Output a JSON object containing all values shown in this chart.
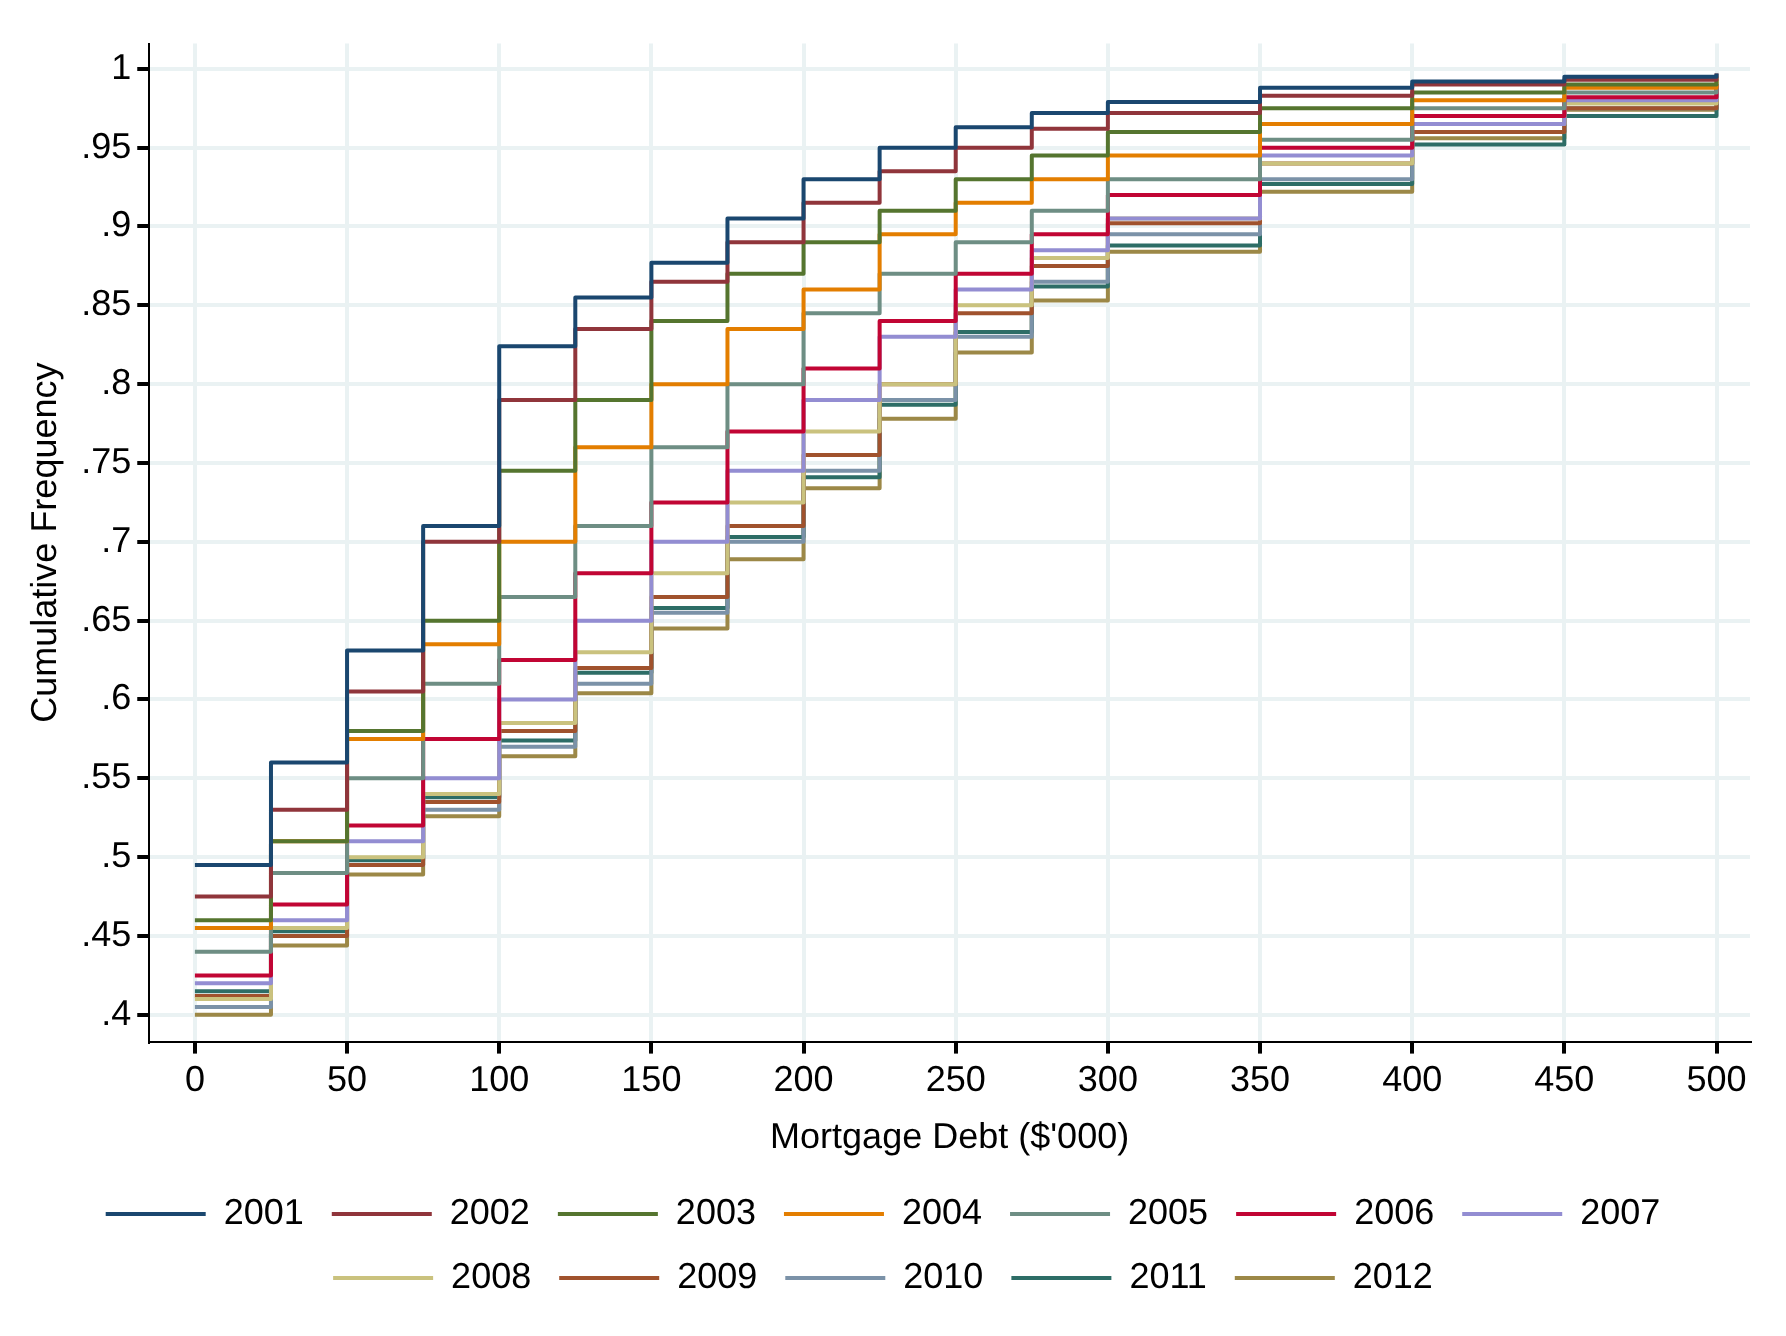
{
  "chart_data": {
    "type": "step",
    "xlabel": "Mortgage Debt ($'000)",
    "ylabel": "Cumulative Frequency",
    "x": [
      0,
      25,
      50,
      75,
      100,
      125,
      150,
      175,
      200,
      225,
      250,
      275,
      300,
      350,
      400,
      450,
      500
    ],
    "series": [
      {
        "name": "2001",
        "color": "#1a476f",
        "values": [
          0.495,
          0.56,
          0.631,
          0.71,
          0.824,
          0.855,
          0.877,
          0.905,
          0.93,
          0.95,
          0.963,
          0.972,
          0.979,
          0.988,
          0.992,
          0.995,
          0.997
        ]
      },
      {
        "name": "2002",
        "color": "#90353b",
        "values": [
          0.475,
          0.53,
          0.605,
          0.7,
          0.79,
          0.835,
          0.865,
          0.89,
          0.915,
          0.935,
          0.95,
          0.962,
          0.972,
          0.983,
          0.99,
          0.993,
          0.997
        ]
      },
      {
        "name": "2003",
        "color": "#55752f",
        "values": [
          0.46,
          0.51,
          0.58,
          0.65,
          0.745,
          0.79,
          0.84,
          0.87,
          0.89,
          0.91,
          0.93,
          0.945,
          0.96,
          0.975,
          0.985,
          0.99,
          0.995
        ]
      },
      {
        "name": "2004",
        "color": "#e37e00",
        "values": [
          0.455,
          0.51,
          0.575,
          0.635,
          0.7,
          0.76,
          0.8,
          0.835,
          0.86,
          0.895,
          0.915,
          0.93,
          0.945,
          0.965,
          0.98,
          0.988,
          0.993
        ]
      },
      {
        "name": "2005",
        "color": "#6e8e84",
        "values": [
          0.44,
          0.49,
          0.55,
          0.61,
          0.665,
          0.71,
          0.76,
          0.8,
          0.845,
          0.87,
          0.89,
          0.91,
          0.93,
          0.955,
          0.975,
          0.985,
          0.99
        ]
      },
      {
        "name": "2006",
        "color": "#c10534",
        "values": [
          0.425,
          0.47,
          0.52,
          0.575,
          0.625,
          0.68,
          0.725,
          0.77,
          0.81,
          0.84,
          0.87,
          0.895,
          0.92,
          0.95,
          0.97,
          0.982,
          0.99
        ]
      },
      {
        "name": "2007",
        "color": "#938dd2",
        "values": [
          0.42,
          0.46,
          0.51,
          0.55,
          0.6,
          0.65,
          0.7,
          0.745,
          0.79,
          0.83,
          0.86,
          0.885,
          0.905,
          0.945,
          0.965,
          0.98,
          0.99
        ]
      },
      {
        "name": "2008",
        "color": "#cac27e",
        "values": [
          0.41,
          0.455,
          0.5,
          0.54,
          0.585,
          0.63,
          0.68,
          0.725,
          0.77,
          0.8,
          0.85,
          0.88,
          0.905,
          0.94,
          0.965,
          0.978,
          0.988
        ]
      },
      {
        "name": "2009",
        "color": "#a0522d",
        "values": [
          0.412,
          0.45,
          0.495,
          0.535,
          0.58,
          0.62,
          0.665,
          0.71,
          0.755,
          0.8,
          0.845,
          0.875,
          0.902,
          0.94,
          0.96,
          0.975,
          0.99
        ]
      },
      {
        "name": "2010",
        "color": "#7b92a8",
        "values": [
          0.405,
          0.45,
          0.495,
          0.53,
          0.57,
          0.61,
          0.655,
          0.7,
          0.745,
          0.79,
          0.83,
          0.865,
          0.895,
          0.93,
          0.96,
          0.975,
          0.985
        ]
      },
      {
        "name": "2011",
        "color": "#2d6d66",
        "values": [
          0.415,
          0.453,
          0.498,
          0.538,
          0.574,
          0.617,
          0.658,
          0.703,
          0.741,
          0.787,
          0.833,
          0.862,
          0.888,
          0.927,
          0.952,
          0.97,
          0.982
        ]
      },
      {
        "name": "2012",
        "color": "#9c8847",
        "values": [
          0.4,
          0.444,
          0.489,
          0.526,
          0.564,
          0.604,
          0.645,
          0.689,
          0.734,
          0.778,
          0.82,
          0.853,
          0.884,
          0.922,
          0.956,
          0.974,
          0.984
        ]
      }
    ],
    "xlim": [
      -15,
      511
    ],
    "xticks": [
      0,
      50,
      100,
      150,
      200,
      250,
      300,
      350,
      400,
      450,
      500
    ],
    "ylim": [
      0.383,
      1.016
    ],
    "yticks": [
      {
        "value": 0.4,
        "label": ".4"
      },
      {
        "value": 0.45,
        "label": ".45"
      },
      {
        "value": 0.5,
        "label": ".5"
      },
      {
        "value": 0.55,
        "label": ".55"
      },
      {
        "value": 0.6,
        "label": ".6"
      },
      {
        "value": 0.65,
        "label": ".65"
      },
      {
        "value": 0.7,
        "label": ".7"
      },
      {
        "value": 0.75,
        "label": ".75"
      },
      {
        "value": 0.8,
        "label": ".8"
      },
      {
        "value": 0.85,
        "label": ".85"
      },
      {
        "value": 0.9,
        "label": ".9"
      },
      {
        "value": 0.95,
        "label": ".95"
      },
      1
    ],
    "grid": true,
    "legend": "bottom",
    "marker": "none",
    "line_style": "solid"
  }
}
